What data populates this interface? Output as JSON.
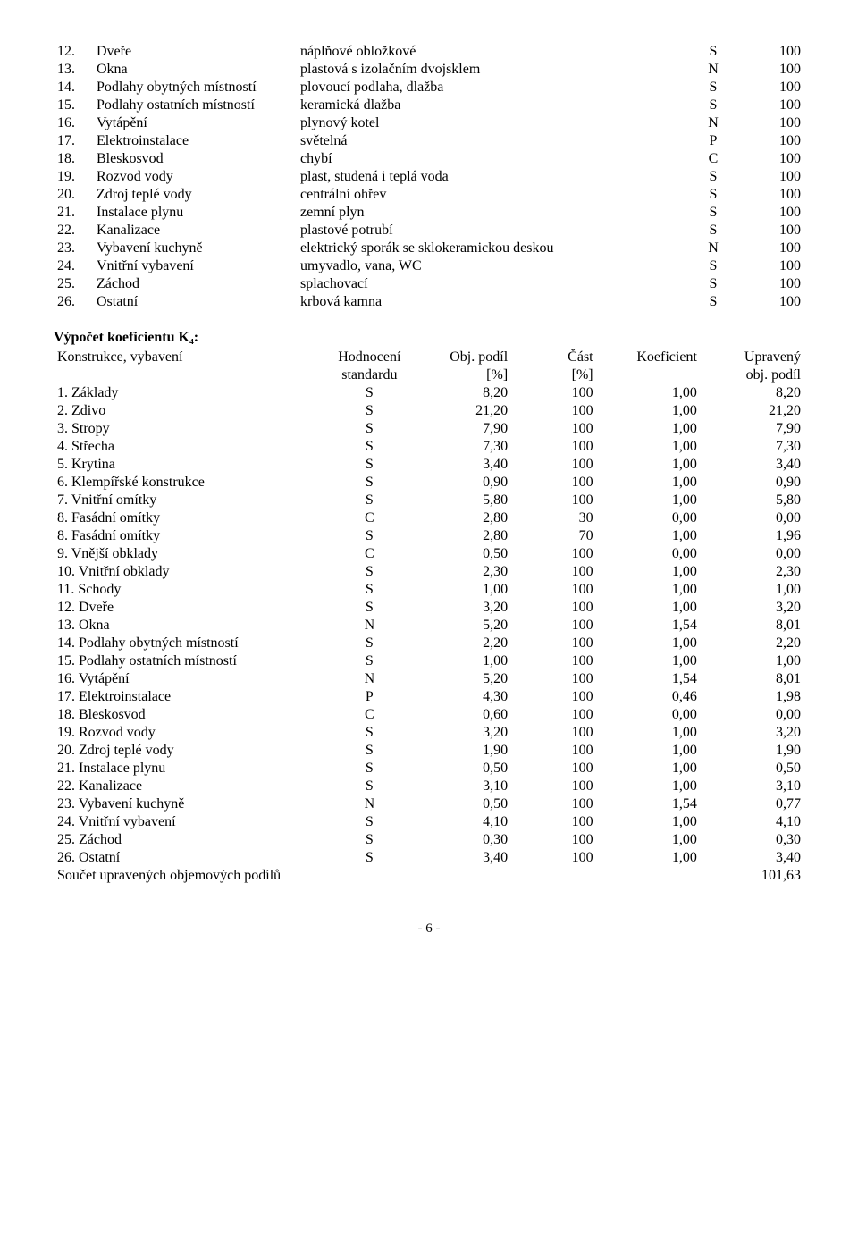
{
  "table1": {
    "rows": [
      {
        "num": "12.",
        "name": "Dveře",
        "desc": "náplňové obložkové",
        "code": "S",
        "val": "100"
      },
      {
        "num": "13.",
        "name": "Okna",
        "desc": "plastová s izolačním dvojsklem",
        "code": "N",
        "val": "100"
      },
      {
        "num": "14.",
        "name": "Podlahy obytných místností",
        "desc": "plovoucí podlaha, dlažba",
        "code": "S",
        "val": "100"
      },
      {
        "num": "15.",
        "name": "Podlahy ostatních místností",
        "desc": "keramická dlažba",
        "code": "S",
        "val": "100"
      },
      {
        "num": "16.",
        "name": "Vytápění",
        "desc": "plynový kotel",
        "code": "N",
        "val": "100"
      },
      {
        "num": "17.",
        "name": "Elektroinstalace",
        "desc": "světelná",
        "code": "P",
        "val": "100"
      },
      {
        "num": "18.",
        "name": "Bleskosvod",
        "desc": "chybí",
        "code": "C",
        "val": "100"
      },
      {
        "num": "19.",
        "name": "Rozvod vody",
        "desc": "plast, studená i teplá voda",
        "code": "S",
        "val": "100"
      },
      {
        "num": "20.",
        "name": "Zdroj teplé vody",
        "desc": "centrální ohřev",
        "code": "S",
        "val": "100"
      },
      {
        "num": "21.",
        "name": "Instalace plynu",
        "desc": "zemní plyn",
        "code": "S",
        "val": "100"
      },
      {
        "num": "22.",
        "name": "Kanalizace",
        "desc": "plastové potrubí",
        "code": "S",
        "val": "100"
      },
      {
        "num": "23.",
        "name": "Vybavení kuchyně",
        "desc": "elektrický sporák se sklokeramickou deskou",
        "code": "N",
        "val": "100"
      },
      {
        "num": "24.",
        "name": "Vnitřní vybavení",
        "desc": "umyvadlo, vana, WC",
        "code": "S",
        "val": "100"
      },
      {
        "num": "25.",
        "name": "Záchod",
        "desc": "splachovací",
        "code": "S",
        "val": "100"
      },
      {
        "num": "26.",
        "name": "Ostatní",
        "desc": "krbová kamna",
        "code": "S",
        "val": "100"
      }
    ]
  },
  "section_title": "Výpočet koeficientu K₄:",
  "table2": {
    "header": {
      "name": "Konstrukce, vybavení",
      "hod1": "Hodnocení",
      "hod2": "standardu",
      "obj1": "Obj. podíl",
      "obj2": "[%]",
      "cast1": "Část",
      "cast2": "[%]",
      "koef": "Koeficient",
      "upr1": "Upravený",
      "upr2": "obj. podíl"
    },
    "rows": [
      {
        "name": "1. Základy",
        "hod": "S",
        "obj": "8,20",
        "cast": "100",
        "koef": "1,00",
        "upr": "8,20"
      },
      {
        "name": "2. Zdivo",
        "hod": "S",
        "obj": "21,20",
        "cast": "100",
        "koef": "1,00",
        "upr": "21,20"
      },
      {
        "name": "3. Stropy",
        "hod": "S",
        "obj": "7,90",
        "cast": "100",
        "koef": "1,00",
        "upr": "7,90"
      },
      {
        "name": "4. Střecha",
        "hod": "S",
        "obj": "7,30",
        "cast": "100",
        "koef": "1,00",
        "upr": "7,30"
      },
      {
        "name": "5. Krytina",
        "hod": "S",
        "obj": "3,40",
        "cast": "100",
        "koef": "1,00",
        "upr": "3,40"
      },
      {
        "name": "6. Klempířské konstrukce",
        "hod": "S",
        "obj": "0,90",
        "cast": "100",
        "koef": "1,00",
        "upr": "0,90"
      },
      {
        "name": "7. Vnitřní omítky",
        "hod": "S",
        "obj": "5,80",
        "cast": "100",
        "koef": "1,00",
        "upr": "5,80"
      },
      {
        "name": "8. Fasádní omítky",
        "hod": "C",
        "obj": "2,80",
        "cast": "30",
        "koef": "0,00",
        "upr": "0,00"
      },
      {
        "name": "8. Fasádní omítky",
        "hod": "S",
        "obj": "2,80",
        "cast": "70",
        "koef": "1,00",
        "upr": "1,96"
      },
      {
        "name": "9. Vnější obklady",
        "hod": "C",
        "obj": "0,50",
        "cast": "100",
        "koef": "0,00",
        "upr": "0,00"
      },
      {
        "name": "10. Vnitřní obklady",
        "hod": "S",
        "obj": "2,30",
        "cast": "100",
        "koef": "1,00",
        "upr": "2,30"
      },
      {
        "name": "11. Schody",
        "hod": "S",
        "obj": "1,00",
        "cast": "100",
        "koef": "1,00",
        "upr": "1,00"
      },
      {
        "name": "12. Dveře",
        "hod": "S",
        "obj": "3,20",
        "cast": "100",
        "koef": "1,00",
        "upr": "3,20"
      },
      {
        "name": "13. Okna",
        "hod": "N",
        "obj": "5,20",
        "cast": "100",
        "koef": "1,54",
        "upr": "8,01"
      },
      {
        "name": "14. Podlahy obytných místností",
        "hod": "S",
        "obj": "2,20",
        "cast": "100",
        "koef": "1,00",
        "upr": "2,20"
      },
      {
        "name": "15. Podlahy ostatních místností",
        "hod": "S",
        "obj": "1,00",
        "cast": "100",
        "koef": "1,00",
        "upr": "1,00"
      },
      {
        "name": "16. Vytápění",
        "hod": "N",
        "obj": "5,20",
        "cast": "100",
        "koef": "1,54",
        "upr": "8,01"
      },
      {
        "name": "17. Elektroinstalace",
        "hod": "P",
        "obj": "4,30",
        "cast": "100",
        "koef": "0,46",
        "upr": "1,98"
      },
      {
        "name": "18. Bleskosvod",
        "hod": "C",
        "obj": "0,60",
        "cast": "100",
        "koef": "0,00",
        "upr": "0,00"
      },
      {
        "name": "19. Rozvod vody",
        "hod": "S",
        "obj": "3,20",
        "cast": "100",
        "koef": "1,00",
        "upr": "3,20"
      },
      {
        "name": "20. Zdroj teplé vody",
        "hod": "S",
        "obj": "1,90",
        "cast": "100",
        "koef": "1,00",
        "upr": "1,90"
      },
      {
        "name": "21. Instalace plynu",
        "hod": "S",
        "obj": "0,50",
        "cast": "100",
        "koef": "1,00",
        "upr": "0,50"
      },
      {
        "name": "22. Kanalizace",
        "hod": "S",
        "obj": "3,10",
        "cast": "100",
        "koef": "1,00",
        "upr": "3,10"
      },
      {
        "name": "23. Vybavení kuchyně",
        "hod": "N",
        "obj": "0,50",
        "cast": "100",
        "koef": "1,54",
        "upr": "0,77"
      },
      {
        "name": "24. Vnitřní vybavení",
        "hod": "S",
        "obj": "4,10",
        "cast": "100",
        "koef": "1,00",
        "upr": "4,10"
      },
      {
        "name": "25. Záchod",
        "hod": "S",
        "obj": "0,30",
        "cast": "100",
        "koef": "1,00",
        "upr": "0,30"
      },
      {
        "name": "26. Ostatní",
        "hod": "S",
        "obj": "3,40",
        "cast": "100",
        "koef": "1,00",
        "upr": "3,40"
      }
    ],
    "sum_label": "Součet upravených objemových podílů",
    "sum_val": "101,63"
  },
  "page_number": "- 6 -"
}
